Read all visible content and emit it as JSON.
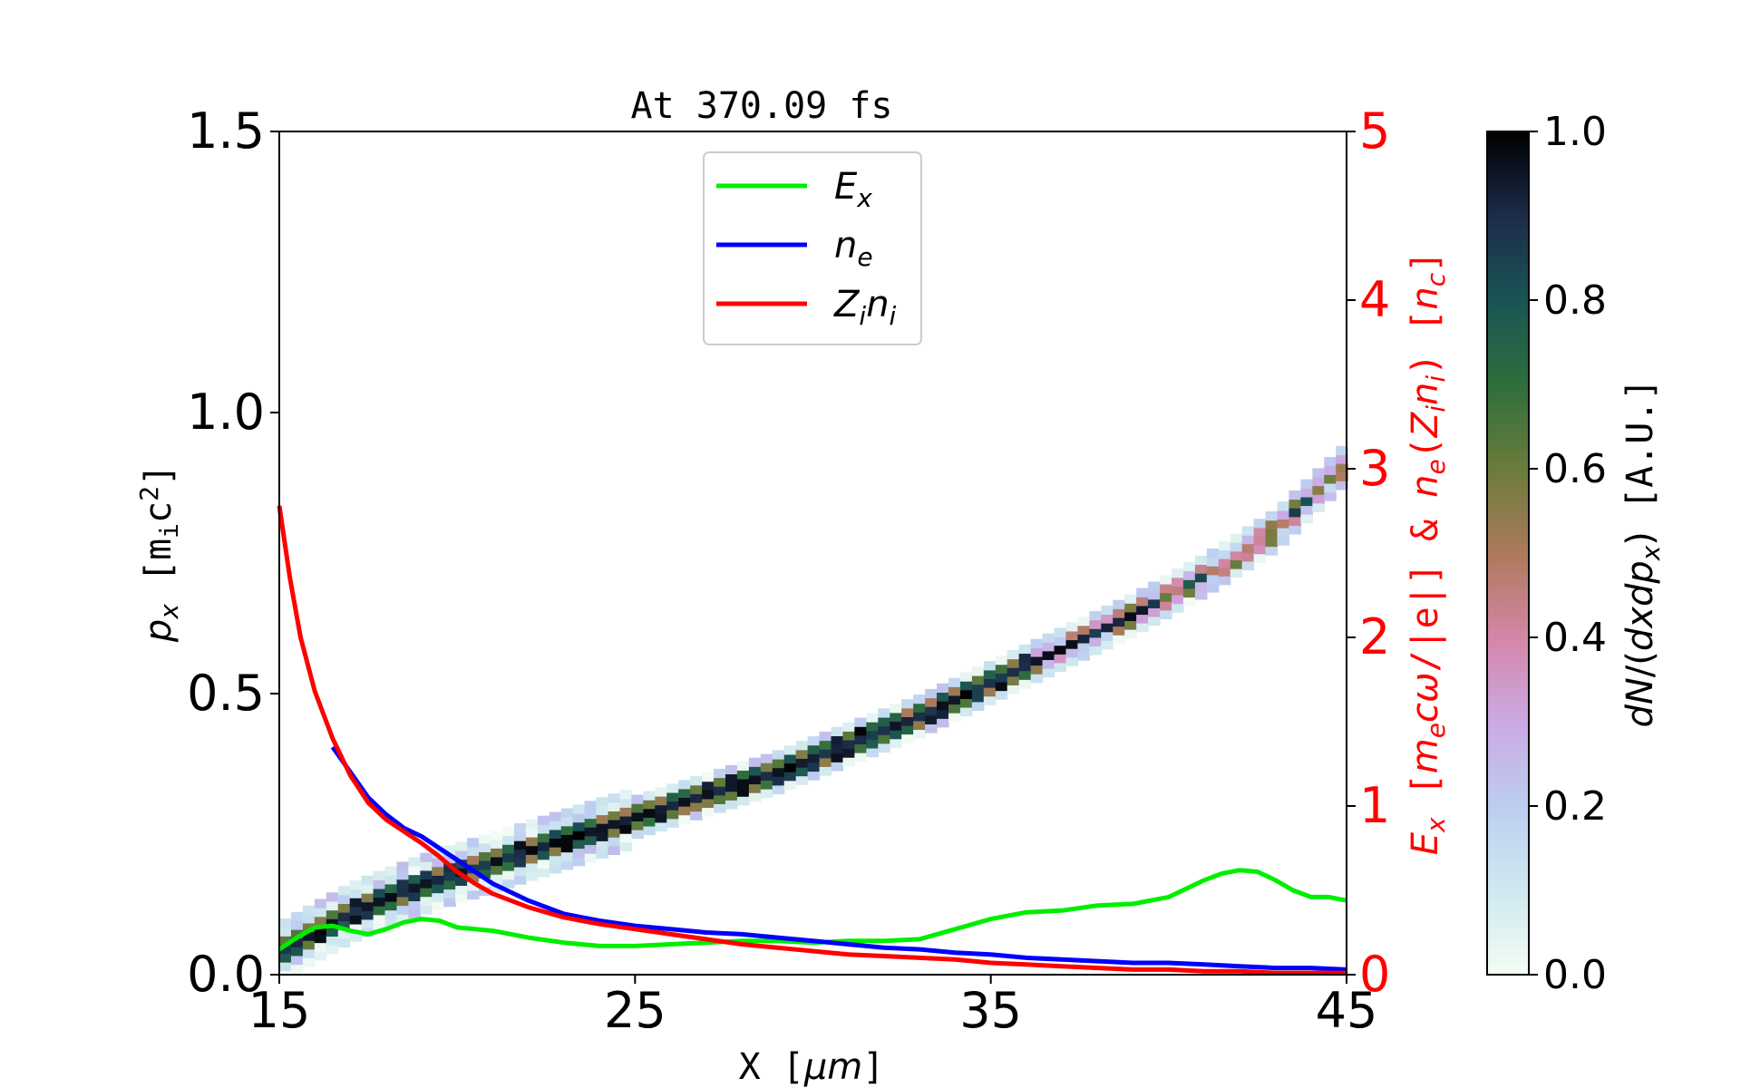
{
  "chart_data": {
    "type": "heatmap",
    "title": "At 370.09 fs",
    "xlabel": "X [μm]",
    "ylabel_left": "p_x [m_i c^2]",
    "ylabel_right": "E_x [m_e c ω/|e|] & n_e(Z_i n_i) [n_c]",
    "colorbar_label": "dN/(dxdp_x) [A.U.]",
    "xlim": [
      15,
      45
    ],
    "ylim_left": [
      0.0,
      1.5
    ],
    "ylim_right": [
      0,
      5
    ],
    "clim": [
      0.0,
      1.0
    ],
    "x_ticks": [
      "15",
      "25",
      "35",
      "45"
    ],
    "y_ticks_left": [
      "0.0",
      "0.5",
      "1.0",
      "1.5"
    ],
    "y_ticks_right": [
      "0",
      "1",
      "2",
      "3",
      "4",
      "5"
    ],
    "colorbar_ticks": [
      "0.0",
      "0.2",
      "0.4",
      "0.6",
      "0.8",
      "1.0"
    ],
    "colormap": "cubehelix_r",
    "legend_position": "upper center",
    "phase_space_band": {
      "x": [
        15,
        17,
        19,
        21,
        23,
        25,
        27,
        29,
        31,
        33,
        35,
        37,
        39,
        41,
        43,
        45
      ],
      "px": [
        0.04,
        0.11,
        0.16,
        0.2,
        0.24,
        0.28,
        0.32,
        0.36,
        0.41,
        0.46,
        0.52,
        0.58,
        0.64,
        0.71,
        0.79,
        0.91
      ]
    },
    "series": [
      {
        "name": "E_x",
        "color": "#00ee00",
        "x": [
          15,
          15.5,
          16,
          16.5,
          17,
          17.5,
          18,
          18.5,
          19,
          19.5,
          20,
          21,
          22,
          23,
          24,
          25,
          26,
          27,
          28,
          29,
          30,
          31,
          32,
          33,
          34,
          35,
          36,
          37,
          38,
          39,
          40,
          40.5,
          41,
          41.5,
          42,
          42.5,
          43,
          43.5,
          44,
          44.5,
          45
        ],
        "y": [
          0.15,
          0.22,
          0.28,
          0.29,
          0.26,
          0.24,
          0.27,
          0.31,
          0.33,
          0.32,
          0.28,
          0.26,
          0.22,
          0.19,
          0.17,
          0.17,
          0.18,
          0.19,
          0.2,
          0.2,
          0.19,
          0.2,
          0.2,
          0.21,
          0.27,
          0.33,
          0.37,
          0.38,
          0.41,
          0.42,
          0.46,
          0.51,
          0.56,
          0.6,
          0.62,
          0.61,
          0.56,
          0.5,
          0.46,
          0.46,
          0.44
        ]
      },
      {
        "name": "n_e",
        "color": "#0000ff",
        "x": [
          16.5,
          17,
          17.5,
          18,
          18.5,
          19,
          19.5,
          20,
          20.5,
          21,
          22,
          23,
          24,
          25,
          26,
          27,
          28,
          29,
          30,
          31,
          32,
          33,
          34,
          35,
          36,
          37,
          38,
          39,
          40,
          41,
          42,
          43,
          44,
          45
        ],
        "y": [
          1.35,
          1.2,
          1.05,
          0.95,
          0.87,
          0.82,
          0.75,
          0.68,
          0.61,
          0.54,
          0.44,
          0.36,
          0.32,
          0.29,
          0.27,
          0.25,
          0.24,
          0.22,
          0.2,
          0.18,
          0.16,
          0.15,
          0.13,
          0.12,
          0.1,
          0.09,
          0.08,
          0.07,
          0.07,
          0.06,
          0.05,
          0.04,
          0.04,
          0.03
        ]
      },
      {
        "name": "Z_i n_i",
        "color": "#ff0000",
        "x": [
          15,
          15.3,
          15.6,
          16,
          16.5,
          17,
          17.5,
          18,
          18.5,
          19,
          19.5,
          20,
          20.5,
          21,
          22,
          23,
          24,
          25,
          26,
          27,
          28,
          29,
          30,
          31,
          32,
          33,
          34,
          35,
          36,
          37,
          38,
          39,
          40,
          41,
          42,
          43,
          44,
          45
        ],
        "y": [
          2.78,
          2.35,
          2.0,
          1.68,
          1.4,
          1.18,
          1.02,
          0.92,
          0.85,
          0.78,
          0.7,
          0.61,
          0.54,
          0.48,
          0.4,
          0.34,
          0.3,
          0.27,
          0.24,
          0.21,
          0.18,
          0.16,
          0.14,
          0.12,
          0.11,
          0.1,
          0.09,
          0.07,
          0.06,
          0.05,
          0.04,
          0.03,
          0.03,
          0.02,
          0.02,
          0.01,
          0.01,
          0.01
        ]
      }
    ],
    "legend": [
      {
        "label": "E",
        "sub": "x",
        "color": "#00ee00"
      },
      {
        "label": "n",
        "sub": "e",
        "color": "#0000ff"
      },
      {
        "label": "Z",
        "sub": "i",
        "label2": "n",
        "sub2": "i",
        "color": "#ff0000"
      }
    ]
  }
}
